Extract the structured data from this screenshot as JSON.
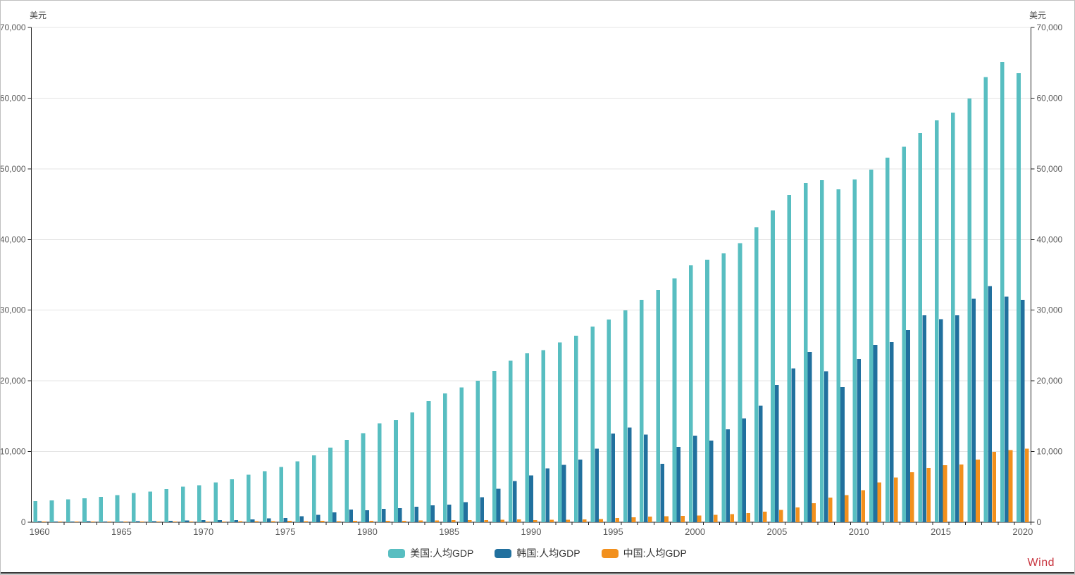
{
  "axes": {
    "left_unit": "美元",
    "right_unit": "美元",
    "y_ticks": [
      "0",
      "10,000",
      "20,000",
      "30,000",
      "40,000",
      "50,000",
      "60,000",
      "70,000"
    ],
    "x_labels": [
      "1960",
      "1965",
      "1970",
      "1975",
      "1980",
      "1985",
      "1990",
      "1995",
      "2000",
      "2005",
      "2010",
      "2015",
      "2020"
    ]
  },
  "watermark": {
    "label": "Wind",
    "color": "#c9353f"
  },
  "chart_data": {
    "type": "bar",
    "title": "",
    "xlabel": "",
    "ylabel": "美元",
    "ylim": [
      0,
      70000
    ],
    "y_tick_step": 10000,
    "grid": true,
    "legend_position": "bottom-center",
    "dual_y_axis": true,
    "x": [
      1960,
      1961,
      1962,
      1963,
      1964,
      1965,
      1966,
      1967,
      1968,
      1969,
      1970,
      1971,
      1972,
      1973,
      1974,
      1975,
      1976,
      1977,
      1978,
      1979,
      1980,
      1981,
      1982,
      1983,
      1984,
      1985,
      1986,
      1987,
      1988,
      1989,
      1990,
      1991,
      1992,
      1993,
      1994,
      1995,
      1996,
      1997,
      1998,
      1999,
      2000,
      2001,
      2002,
      2003,
      2004,
      2005,
      2006,
      2007,
      2008,
      2009,
      2010,
      2011,
      2012,
      2013,
      2014,
      2015,
      2016,
      2017,
      2018,
      2019,
      2020
    ],
    "series": [
      {
        "name": "美国:人均GDP",
        "color": "#58bec1",
        "values": [
          3007,
          3067,
          3244,
          3375,
          3574,
          3828,
          4146,
          4336,
          4696,
          5032,
          5234,
          5609,
          6094,
          6726,
          7226,
          7801,
          8592,
          9453,
          10565,
          11674,
          12575,
          13976,
          14434,
          15544,
          17121,
          18237,
          19071,
          20039,
          21417,
          22857,
          23889,
          24342,
          25419,
          26387,
          27695,
          28691,
          29968,
          31459,
          32854,
          34515,
          36330,
          37134,
          38023,
          39496,
          41713,
          44114,
          46298,
          47976,
          48383,
          47100,
          48468,
          49883,
          51603,
          53107,
          55050,
          56863,
          57928,
          59958,
          62997,
          65120,
          63544
        ]
      },
      {
        "name": "韩国:人均GDP",
        "color": "#21709e",
        "values": [
          158,
          94,
          106,
          146,
          124,
          109,
          133,
          161,
          198,
          243,
          279,
          301,
          324,
          406,
          563,
          617,
          834,
          1056,
          1406,
          1784,
          1715,
          1883,
          1992,
          2198,
          2413,
          2482,
          2835,
          3555,
          4754,
          5817,
          6610,
          7637,
          8127,
          8882,
          10385,
          12565,
          13403,
          12398,
          8282,
          10672,
          12257,
          11561,
          13165,
          14673,
          16496,
          19403,
          21743,
          24086,
          21350,
          19143,
          23087,
          25096,
          25467,
          27183,
          29253,
          28732,
          29289,
          31617,
          33423,
          31929,
          31489
        ]
      },
      {
        "name": "中国:人均GDP",
        "color": "#f2901d",
        "values": [
          90,
          76,
          71,
          74,
          85,
          98,
          104,
          97,
          91,
          100,
          113,
          119,
          132,
          157,
          160,
          178,
          165,
          185,
          156,
          184,
          195,
          197,
          203,
          225,
          251,
          294,
          282,
          301,
          370,
          411,
          318,
          333,
          366,
          377,
          473,
          610,
          709,
          782,
          829,
          873,
          959,
          1053,
          1149,
          1289,
          1509,
          1753,
          2099,
          2694,
          3468,
          3832,
          4550,
          5618,
          6317,
          7051,
          7679,
          8067,
          8148,
          8879,
          9977,
          10217,
          10409
        ]
      }
    ]
  }
}
